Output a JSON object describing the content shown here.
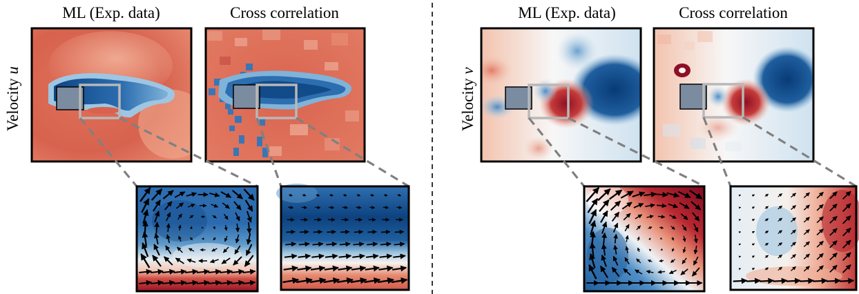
{
  "left": {
    "ylabel_prefix": "Velocity ",
    "ylabel_var": "u",
    "title_ml": "ML (Exp. data)",
    "title_cc": "Cross correlation"
  },
  "right": {
    "ylabel_prefix": "Velocity ",
    "ylabel_var": "v",
    "title_ml": "ML (Exp. data)",
    "title_cc": "Cross correlation"
  },
  "colors": {
    "red": "#d9624f",
    "deep_red": "#b2182b",
    "dark_red": "#8a0f24",
    "blue": "#2f6fb0",
    "dark_blue": "#0b3d78",
    "light_blue": "#bcd7ea",
    "white": "#f6f6f6",
    "obstacle": "#7b8ba0",
    "zoom_box": "#b8b8b8",
    "connector": "#808080",
    "divider": "#333333"
  }
}
